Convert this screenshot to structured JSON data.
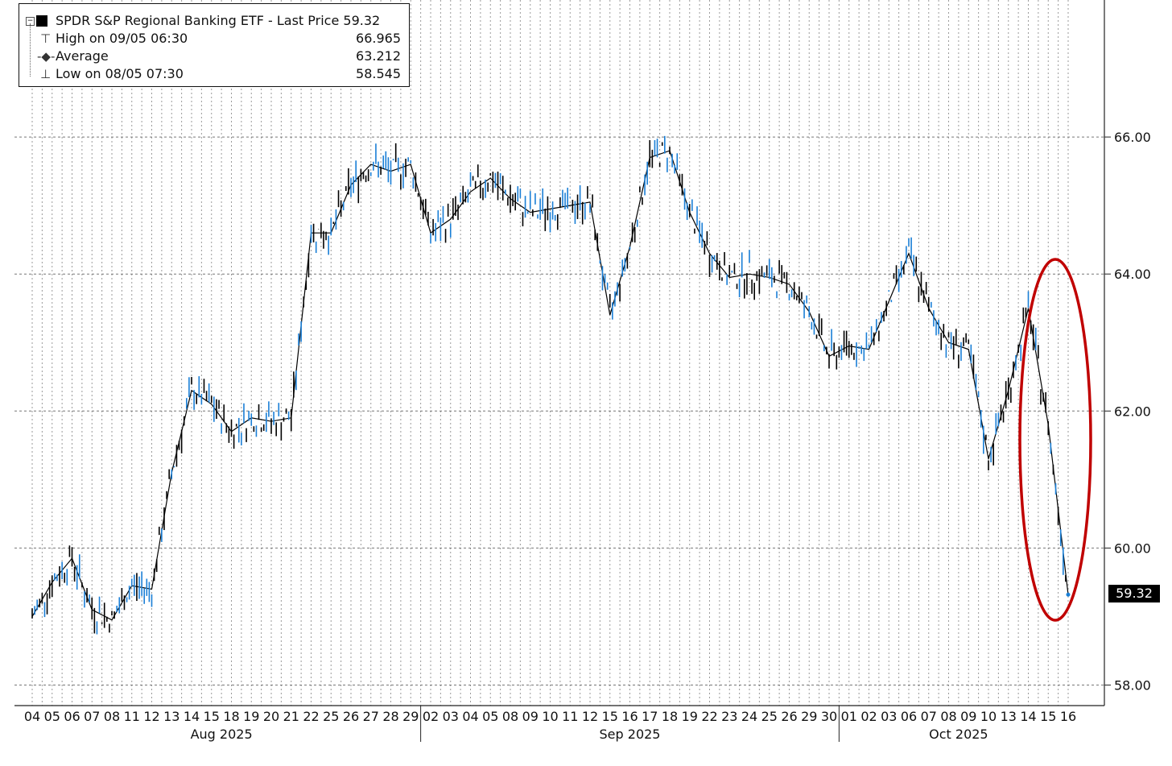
{
  "legend": {
    "title": "SPDR S&P Regional Banking ETF - Last Price",
    "last_price": "59.32",
    "rows": [
      {
        "label": "High on 09/05 06:30",
        "value": "66.965"
      },
      {
        "label": "Average",
        "value": "63.212"
      },
      {
        "label": "Low on 08/05 07:30",
        "value": "58.545"
      }
    ]
  },
  "chart_data": {
    "type": "line",
    "title": "SPDR S&P Regional Banking ETF - Last Price",
    "ylim": [
      57.7,
      68.0
    ],
    "y_ticks": [
      "58.00",
      "60.00",
      "62.00",
      "64.00",
      "66.00"
    ],
    "y_tick_values": [
      58,
      60,
      62,
      64,
      66
    ],
    "grid": true,
    "legend_position": "top-left",
    "x_categories": [
      "04",
      "05",
      "06",
      "07",
      "08",
      "11",
      "12",
      "13",
      "14",
      "15",
      "18",
      "19",
      "20",
      "21",
      "22",
      "25",
      "26",
      "27",
      "28",
      "29",
      "02",
      "03",
      "04",
      "05",
      "08",
      "09",
      "10",
      "11",
      "12",
      "15",
      "16",
      "17",
      "18",
      "19",
      "22",
      "23",
      "24",
      "25",
      "26",
      "29",
      "30",
      "01",
      "02",
      "03",
      "06",
      "07",
      "08",
      "09",
      "10",
      "13",
      "14",
      "15",
      "16"
    ],
    "month_labels": [
      {
        "label": "Aug 2025",
        "start_index": 0,
        "end_index": 19
      },
      {
        "label": "Sep 2025",
        "start_index": 20,
        "end_index": 40
      },
      {
        "label": "Oct 2025",
        "start_index": 41,
        "end_index": 52
      }
    ],
    "series": [
      {
        "values": [
          59.0,
          59.5,
          59.85,
          59.1,
          58.95,
          59.45,
          59.4,
          61.1,
          62.3,
          62.1,
          61.7,
          61.9,
          61.85,
          61.9,
          64.6,
          64.6,
          65.3,
          65.6,
          65.5,
          65.6,
          64.6,
          64.8,
          65.2,
          65.4,
          65.1,
          64.9,
          64.95,
          65.0,
          65.05,
          63.4,
          64.4,
          65.7,
          65.8,
          64.9,
          64.3,
          63.95,
          64.0,
          63.95,
          63.85,
          63.45,
          62.8,
          62.95,
          62.9,
          63.6,
          64.3,
          63.5,
          63.0,
          62.9,
          61.3,
          62.3,
          63.5,
          61.8,
          59.32
        ],
        "color": "#000000",
        "highlight_color": "#1a7fd6"
      }
    ],
    "highlight_color": "#c00000",
    "last_price_label": "59.32",
    "last_price_value": 59.32
  }
}
